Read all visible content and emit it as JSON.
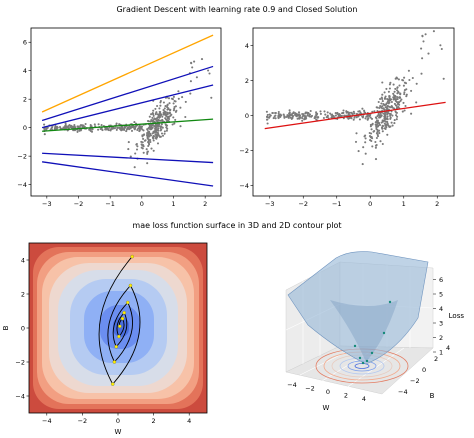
{
  "figure": {
    "title_top": "Gradient Descent with learning rate 0.9 and Closed Solution",
    "title_bottom": "mae loss function surface in 3D and 2D contour plot"
  },
  "colors": {
    "points": "#7a7a7a",
    "gd_lines": "#1010b8",
    "initial_line": "#ffa500",
    "final_gd_line": "#118811",
    "closed_solution": "#dd1111",
    "path": "#000000",
    "path_points": "#ffee00"
  },
  "chart_data": [
    {
      "type": "scatter",
      "title": "",
      "xlabel": "",
      "ylabel": "",
      "xlim": [
        -3.5,
        2.5
      ],
      "ylim": [
        -4.8,
        7.0
      ],
      "xticks": [
        -3,
        -2,
        -1,
        0,
        1,
        2
      ],
      "yticks": [
        -4,
        -2,
        0,
        2,
        4,
        6
      ],
      "grid": false,
      "scatter_description": "x-shaped cloud: horizontal band near y=0 for x<0, steep diagonal band through origin",
      "lines": [
        {
          "color": "orange",
          "x": [
            -3.15,
            2.25
          ],
          "y": [
            1.1,
            6.5
          ]
        },
        {
          "color": "blue",
          "x": [
            -3.15,
            2.25
          ],
          "y": [
            0.5,
            4.3
          ]
        },
        {
          "color": "blue",
          "x": [
            -3.15,
            2.25
          ],
          "y": [
            0.0,
            3.0
          ]
        },
        {
          "color": "green",
          "x": [
            -3.15,
            2.25
          ],
          "y": [
            -0.25,
            0.6
          ]
        },
        {
          "color": "blue",
          "x": [
            -3.15,
            2.25
          ],
          "y": [
            -1.8,
            -2.45
          ]
        },
        {
          "color": "blue",
          "x": [
            -3.15,
            2.25
          ],
          "y": [
            -2.4,
            -4.1
          ]
        }
      ]
    },
    {
      "type": "scatter",
      "title": "",
      "xlabel": "",
      "ylabel": "",
      "xlim": [
        -3.5,
        2.5
      ],
      "ylim": [
        -4.6,
        5.0
      ],
      "xticks": [
        -3,
        -2,
        -1,
        0,
        1,
        2
      ],
      "yticks": [
        -4,
        -2,
        0,
        2,
        4
      ],
      "grid": false,
      "lines": [
        {
          "color": "red",
          "x": [
            -3.15,
            2.25
          ],
          "y": [
            -0.75,
            0.75
          ]
        }
      ]
    },
    {
      "type": "contour",
      "title": "",
      "xlabel": "W",
      "ylabel": "B",
      "xlim": [
        -5,
        5
      ],
      "ylim": [
        -5,
        5
      ],
      "xticks": [
        -4,
        -2,
        0,
        2,
        4
      ],
      "yticks": [
        -4,
        -2,
        0,
        2,
        4
      ],
      "minimum": [
        0.1,
        0.1
      ],
      "path_points": [
        [
          0.8,
          4.2
        ],
        [
          -0.3,
          -3.3
        ],
        [
          0.7,
          2.5
        ],
        [
          -0.2,
          -2.0
        ],
        [
          0.55,
          1.5
        ],
        [
          -0.1,
          -1.1
        ],
        [
          0.35,
          0.9
        ],
        [
          0.05,
          -0.5
        ],
        [
          0.25,
          0.55
        ],
        [
          0.1,
          0.1
        ]
      ]
    },
    {
      "type": "surface3d",
      "title": "",
      "xlabel": "W",
      "ylabel": "B",
      "zlabel": "Loss",
      "xticks": [
        -4,
        -2,
        0,
        2,
        4
      ],
      "yticks": [
        -4,
        -2,
        0,
        2,
        4
      ],
      "zticks": [
        1,
        2,
        3,
        4,
        5,
        6
      ]
    }
  ]
}
